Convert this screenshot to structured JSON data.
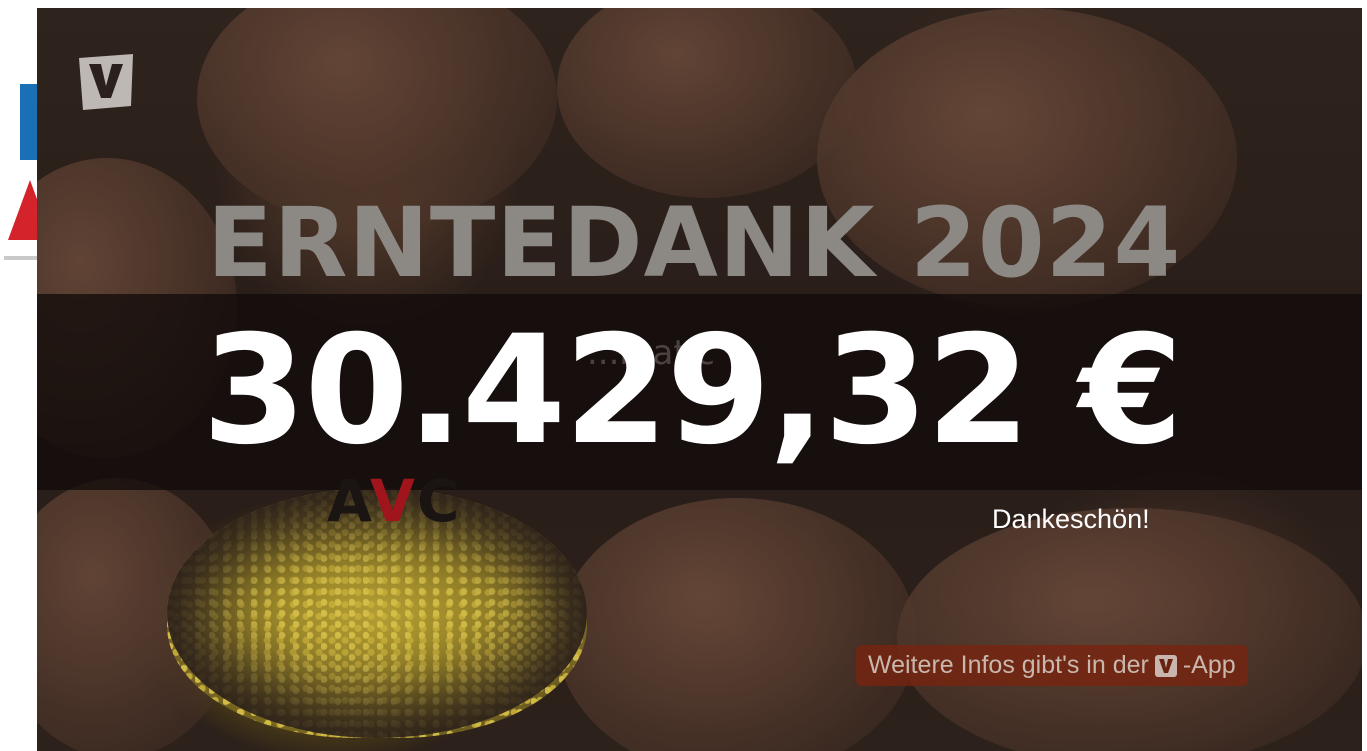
{
  "background_page": {
    "brand_colors": {
      "blue": "#1b6fb4",
      "red": "#d4232b"
    }
  },
  "overlay": {
    "logo_icon": "v-logo-icon",
    "title": "ERNTEDANK 2024",
    "amount": "30.429,32 €",
    "ghost_text": "...matic",
    "thanks": "Dankeschön!",
    "info_text_before": "Weitere Infos gibt's in der",
    "info_icon": "v-app-icon",
    "info_text_after": "-App"
  },
  "avc_logo": {
    "letter_a": "A",
    "letter_v": "V",
    "letter_c": "C"
  },
  "colors": {
    "title": "#8c8884",
    "amount": "#ffffff",
    "band": "#120c0a",
    "pill": "#78240e",
    "avc_accent": "#a0141b"
  }
}
